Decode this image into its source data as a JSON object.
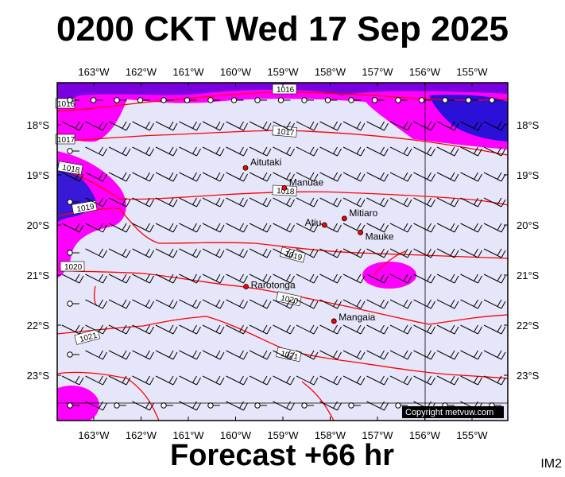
{
  "title": "0200 CKT Wed 17 Sep 2025",
  "forecast_label": "Forecast +66 hr",
  "image_code": "IM2",
  "copyright": "Copyright metvuw.com",
  "colors": {
    "background_fill": "#e6e6fa",
    "isobar": "#ff0000",
    "high_wind": "#ff00ff",
    "very_high_wind": "#1a00d0"
  },
  "longitude_ticks": [
    {
      "lon": 163,
      "label": "163°W"
    },
    {
      "lon": 162,
      "label": "162°W"
    },
    {
      "lon": 161,
      "label": "161°W"
    },
    {
      "lon": 160,
      "label": "160°W"
    },
    {
      "lon": 159,
      "label": "159°W"
    },
    {
      "lon": 158,
      "label": "158°W"
    },
    {
      "lon": 157,
      "label": "157°W"
    },
    {
      "lon": 156,
      "label": "156°W"
    },
    {
      "lon": 155,
      "label": "155°W"
    }
  ],
  "latitude_ticks": [
    {
      "lat": 18,
      "label": "18°S"
    },
    {
      "lat": 19,
      "label": "19°S"
    },
    {
      "lat": 20,
      "label": "20°S"
    },
    {
      "lat": 21,
      "label": "21°S"
    },
    {
      "lat": 22,
      "label": "22°S"
    },
    {
      "lat": 23,
      "label": "23°S"
    }
  ],
  "places": [
    {
      "name": "Aitutaki",
      "lon": 159.79,
      "lat": 18.86
    },
    {
      "name": "Manuae",
      "lon": 158.97,
      "lat": 19.26
    },
    {
      "name": "Mitiaro",
      "lon": 157.7,
      "lat": 19.87
    },
    {
      "name": "Atiu",
      "lon": 158.12,
      "lat": 20.0
    },
    {
      "name": "Mauke",
      "lon": 157.36,
      "lat": 20.15
    },
    {
      "name": "Rarotonga",
      "lon": 159.78,
      "lat": 21.23
    },
    {
      "name": "Mangaia",
      "lon": 157.92,
      "lat": 21.92
    }
  ],
  "isobar_labels": [
    "1016",
    "1016",
    "1017",
    "1017",
    "1018",
    "1018",
    "1019",
    "1019",
    "1020",
    "1020",
    "1021",
    "1021"
  ]
}
